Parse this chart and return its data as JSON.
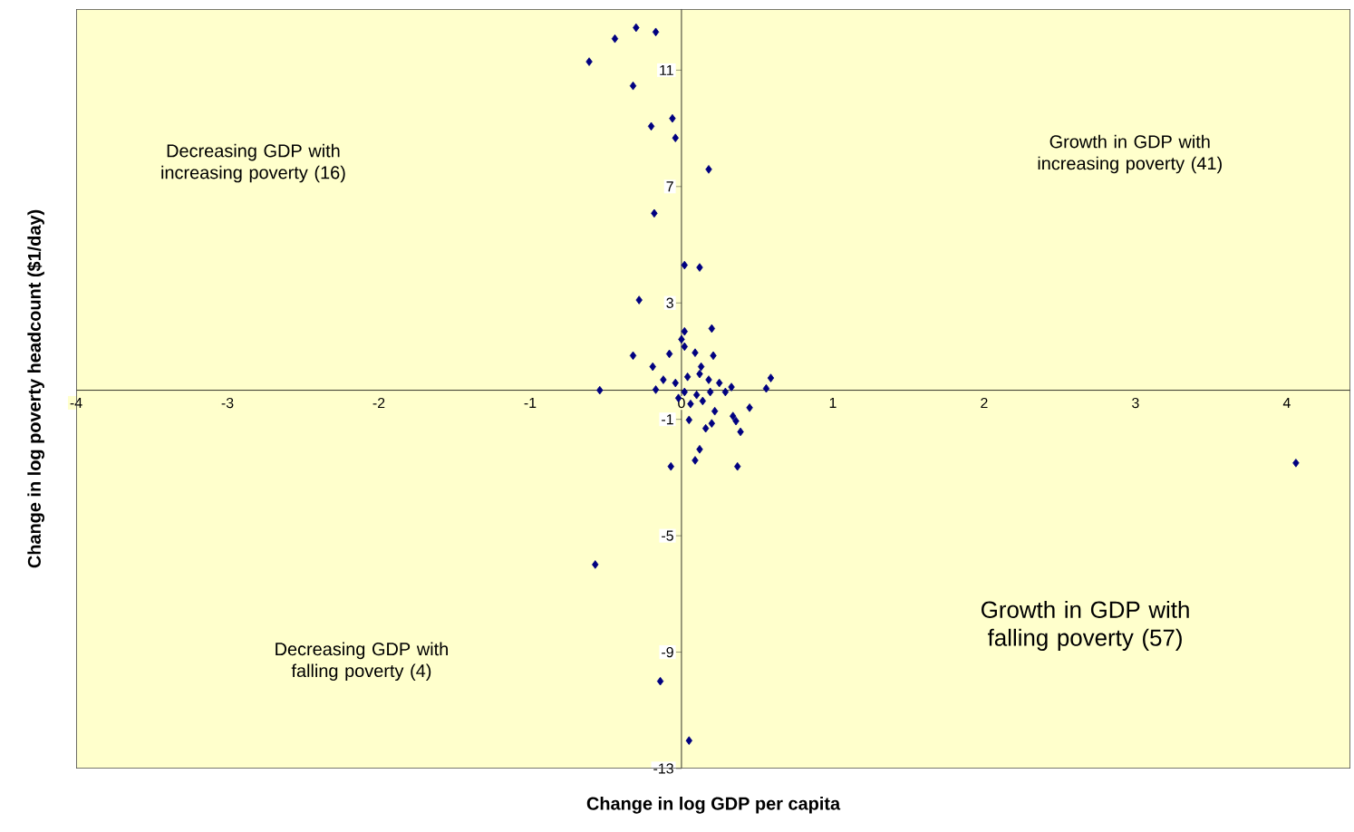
{
  "chart_data": {
    "type": "scatter",
    "xlabel": "Change in log GDP per capita",
    "ylabel": "Change in log poverty headcount ($1/day)",
    "x": [
      -0.3,
      -0.17,
      -0.44,
      -0.61,
      -0.32,
      -0.06,
      -0.2,
      -0.04,
      0.18,
      -0.18,
      0.02,
      0.12,
      -0.28,
      0.02,
      0.2,
      0.0,
      0.02,
      0.09,
      -0.08,
      0.21,
      -0.32,
      -0.19,
      0.13,
      -0.54,
      -0.17,
      0.59,
      0.56,
      -0.12,
      -0.04,
      0.04,
      0.12,
      0.18,
      0.25,
      0.33,
      0.02,
      0.1,
      0.19,
      0.29,
      -0.02,
      0.14,
      0.06,
      0.22,
      0.34,
      0.45,
      0.2,
      0.16,
      0.36,
      0.39,
      0.05,
      0.12,
      0.09,
      -0.07,
      0.37,
      -0.57,
      -0.14,
      0.05,
      4.06
    ],
    "values": [
      12.46,
      12.31,
      12.08,
      11.29,
      10.46,
      9.34,
      9.07,
      8.67,
      7.59,
      6.08,
      4.3,
      4.22,
      3.1,
      2.02,
      2.12,
      1.75,
      1.5,
      1.29,
      1.25,
      1.19,
      1.19,
      0.81,
      0.81,
      0.0,
      0.02,
      0.42,
      0.06,
      0.36,
      0.25,
      0.46,
      0.56,
      0.36,
      0.25,
      0.11,
      -0.06,
      -0.16,
      -0.06,
      -0.06,
      -0.27,
      -0.37,
      -0.47,
      -0.72,
      -0.89,
      -0.6,
      -1.14,
      -1.31,
      -1.06,
      -1.43,
      -1.02,
      -2.03,
      -2.41,
      -2.62,
      -2.62,
      -5.99,
      -10.0,
      -12.04,
      -2.5
    ],
    "color": "#000080",
    "marker": "diamond",
    "grid": false,
    "xlim": [
      -4,
      4.42
    ],
    "ylim": [
      -13,
      13.1
    ],
    "xticks": [
      -4,
      -3,
      -2,
      -1,
      0,
      1,
      2,
      3,
      4
    ],
    "yticks": [
      -13,
      -9,
      -5,
      -1,
      3,
      7,
      11
    ],
    "annotations": [
      "Decreasing GDP with increasing poverty (16)",
      "Growth in GDP with increasing poverty (41)",
      "Decreasing GDP with falling poverty (4)",
      "Growth in GDP with falling poverty (57)"
    ]
  }
}
